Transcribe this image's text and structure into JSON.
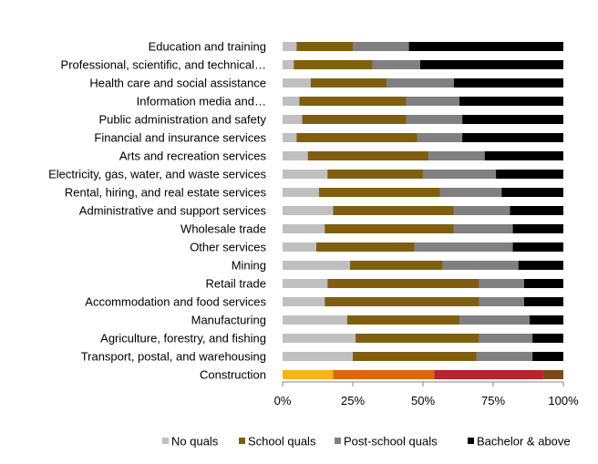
{
  "chart_data": {
    "type": "bar",
    "orientation": "horizontal",
    "stacked": "percent",
    "title": "",
    "xlabel": "",
    "ylabel": "",
    "xlim": [
      0,
      100
    ],
    "x_ticks": [
      "0%",
      "25%",
      "50%",
      "75%",
      "100%"
    ],
    "grid": false,
    "legend_position": "bottom",
    "categories": [
      "Education and training",
      "Professional, scientific, and technical…",
      "Health care and social assistance",
      "Information media and…",
      "Public administration and safety",
      "Financial and insurance services",
      "Arts and recreation services",
      "Electricity, gas, water, and waste services",
      "Rental, hiring, and real estate services",
      "Administrative and support services",
      "Wholesale trade",
      "Other services",
      "Mining",
      "Retail trade",
      "Accommodation and food services",
      "Manufacturing",
      "Agriculture, forestry, and fishing",
      "Transport, postal, and warehousing",
      "Construction"
    ],
    "series": [
      {
        "name": "No quals",
        "color": "#c0c0c0",
        "values": [
          5,
          4,
          10,
          6,
          7,
          5,
          9,
          16,
          13,
          18,
          15,
          12,
          24,
          16,
          15,
          23,
          26,
          25,
          18
        ]
      },
      {
        "name": "School quals",
        "color": "#7f5f0f",
        "values": [
          20,
          28,
          27,
          38,
          37,
          43,
          43,
          34,
          43,
          43,
          46,
          35,
          33,
          54,
          55,
          40,
          44,
          44,
          36
        ]
      },
      {
        "name": "Post-school quals",
        "color": "#808080",
        "values": [
          20,
          17,
          24,
          19,
          20,
          16,
          20,
          26,
          22,
          20,
          21,
          35,
          27,
          16,
          16,
          25,
          19,
          20,
          39
        ]
      },
      {
        "name": "Bachelor & above",
        "color": "#000000",
        "values": [
          55,
          51,
          39,
          37,
          36,
          36,
          28,
          24,
          22,
          19,
          18,
          18,
          16,
          14,
          14,
          12,
          11,
          11,
          7
        ]
      }
    ],
    "highlight": {
      "category": "Construction",
      "colors": [
        "#f7b21c",
        "#d9680c",
        "#b4262b",
        "#7f4a12"
      ]
    }
  }
}
